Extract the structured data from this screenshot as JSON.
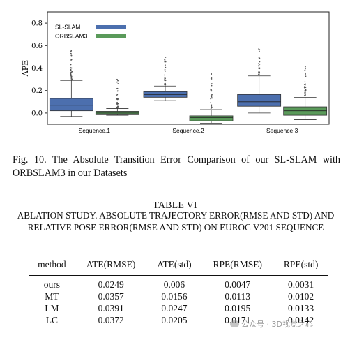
{
  "chart_data": {
    "type": "box",
    "ylabel": "APE",
    "yticks": [
      "0.0",
      "0.2",
      "0.4",
      "0.6",
      "0.8"
    ],
    "ylim": [
      -0.1,
      0.9
    ],
    "categories": [
      "Sequence.1",
      "Sequence.2",
      "Sequence.3"
    ],
    "legend_position": "top-left",
    "series": [
      {
        "name": "SL-SLAM",
        "color": "#4c6fae",
        "boxes": [
          {
            "whislo": -0.03,
            "q1": 0.02,
            "med": 0.07,
            "q3": 0.13,
            "whishi": 0.29
          },
          {
            "whislo": 0.11,
            "q1": 0.14,
            "med": 0.165,
            "q3": 0.19,
            "whishi": 0.24
          },
          {
            "whislo": 0.0,
            "q1": 0.06,
            "med": 0.1,
            "q3": 0.165,
            "whishi": 0.33
          }
        ]
      },
      {
        "name": "ORBSLAM3",
        "color": "#5a9a5a",
        "boxes": [
          {
            "whislo": -0.02,
            "q1": -0.015,
            "med": 0.0,
            "q3": 0.015,
            "whishi": 0.04
          },
          {
            "whislo": -0.09,
            "q1": -0.07,
            "med": -0.04,
            "q3": -0.025,
            "whishi": 0.03
          },
          {
            "whislo": -0.06,
            "q1": -0.02,
            "med": 0.02,
            "q3": 0.055,
            "whishi": 0.14
          }
        ]
      }
    ]
  },
  "caption": "Fig. 10.  The Absolute Transition Error Comparison of our SL-SLAM with ORBSLAM3 in our Datasets",
  "table": {
    "title": "TABLE VI",
    "subtitle": "Ablation Study. Absolute Trajectory Error(RMSE and STD) and Relative Pose Error(RMSE and STD) on EuRoC V201 Sequence",
    "headers": [
      "method",
      "ATE(RMSE)",
      "ATE(std)",
      "RPE(RMSE)",
      "RPE(std)"
    ],
    "rows": [
      [
        "ours",
        "0.0249",
        "0.006",
        "0.0047",
        "0.0031"
      ],
      [
        "MT",
        "0.0357",
        "0.0156",
        "0.0113",
        "0.0102"
      ],
      [
        "LM",
        "0.0391",
        "0.0247",
        "0.0195",
        "0.0133"
      ],
      [
        "LC",
        "0.0372",
        "0.0205",
        "0.0171",
        "0.0142"
      ]
    ]
  },
  "watermark": "公众号 · 3D视觉之心"
}
